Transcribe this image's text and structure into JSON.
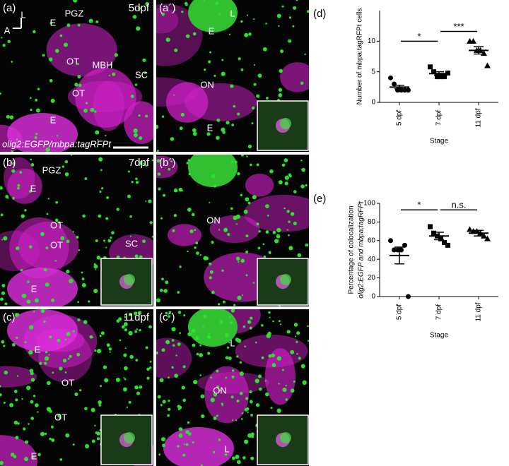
{
  "panels": [
    {
      "label": "(a)",
      "stage": "5dpf",
      "notes": [
        "PGZ",
        "E",
        "OT",
        "OT",
        "MBH",
        "SC",
        "E",
        "L",
        "A"
      ],
      "caption": "olig2:EGFP/mbpa:tagRFPt"
    },
    {
      "label": "(a´)",
      "notes": [
        "L",
        "E",
        "ON",
        "E"
      ]
    },
    {
      "label": "(b)",
      "stage": "7dpf",
      "notes": [
        "PGZ",
        "E",
        "OT",
        "OT",
        "SC",
        "E"
      ]
    },
    {
      "label": "(b´)",
      "notes": [
        "ON"
      ]
    },
    {
      "label": "(c)",
      "stage": "11dpf",
      "notes": [
        "E",
        "OT",
        "OT",
        "E"
      ]
    },
    {
      "label": "(c´)",
      "notes": [
        "L",
        "ON",
        "L"
      ]
    }
  ],
  "chart_data": [
    {
      "type": "dot",
      "panel": "(d)",
      "ylabel": "Number of mbpa:tagRFPt cells",
      "xlabel": "Stage",
      "categories": [
        "5 dpf",
        "7 dpf",
        "11 dpf"
      ],
      "markers": [
        "circle",
        "square",
        "triangle"
      ],
      "values": [
        [
          4,
          3,
          2,
          2,
          2,
          2
        ],
        [
          5.8,
          5,
          4.2,
          4.2,
          4.2,
          4.8
        ],
        [
          10,
          10,
          8.5,
          8.5,
          8,
          6
        ]
      ],
      "means": [
        2.5,
        4.7,
        8.5
      ],
      "sems": [
        0.3,
        0.3,
        0.6
      ],
      "ylim": [
        0,
        15
      ],
      "yticks": [
        0,
        5,
        10
      ],
      "annotations": [
        {
          "text": "*",
          "from": 0,
          "to": 1,
          "y": 10
        },
        {
          "text": "***",
          "from": 1,
          "to": 2,
          "y": 11.6
        }
      ]
    },
    {
      "type": "dot",
      "panel": "(e)",
      "ylabel": [
        "Percentage of colocalization",
        "olig2:EGFP and mbpa:tagRFPt"
      ],
      "xlabel": "Stage",
      "categories": [
        "5 dpf",
        "7 dpf",
        "11 dpf"
      ],
      "markers": [
        "circle",
        "square",
        "triangle"
      ],
      "values": [
        [
          60,
          50,
          50,
          50,
          55,
          0
        ],
        [
          75,
          68,
          65,
          62,
          58,
          55
        ],
        [
          72,
          70,
          70,
          68,
          65,
          62
        ]
      ],
      "means": [
        44,
        65,
        68
      ],
      "sems": [
        9,
        4,
        3
      ],
      "ylim": [
        0,
        100
      ],
      "yticks": [
        0,
        20,
        40,
        60,
        80,
        100
      ],
      "annotations": [
        {
          "text": "*",
          "from": 0,
          "to": 1,
          "y": 93
        },
        {
          "text": "n.s.",
          "from": 1,
          "to": 2,
          "y": 93
        }
      ]
    }
  ]
}
